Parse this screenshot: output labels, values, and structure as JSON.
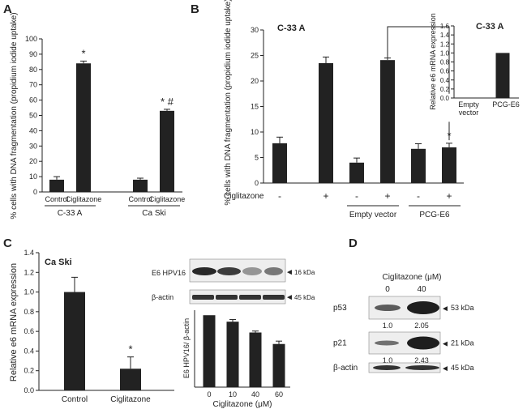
{
  "panels": {
    "A": {
      "letter": "A"
    },
    "B": {
      "letter": "B"
    },
    "C": {
      "letter": "C"
    },
    "D": {
      "letter": "D"
    }
  },
  "chart_data": [
    {
      "id": "A",
      "type": "bar",
      "ylabel": "% cells with DNA fragmentation (propidium iodide uptake)",
      "ylim": [
        0,
        100
      ],
      "yticks": [
        0,
        10,
        20,
        30,
        40,
        50,
        60,
        70,
        80,
        90,
        100
      ],
      "categories": [
        "Control",
        "Ciglitazone",
        "Control",
        "Ciglitazone"
      ],
      "groups": [
        "C-33 A",
        "Ca Ski"
      ],
      "values": [
        8,
        84,
        8,
        53
      ],
      "errors": [
        2,
        1.5,
        1,
        1
      ],
      "annotations": [
        "",
        "*",
        "",
        "* #"
      ]
    },
    {
      "id": "B",
      "type": "bar",
      "title": "C-33 A",
      "ylabel": "% cells with DNA fragmentation (propidium iodide uptake)",
      "ylim": [
        0,
        30
      ],
      "yticks": [
        0,
        5,
        10,
        15,
        20,
        25,
        30
      ],
      "xrow_label": "Ciglitazone",
      "categories": [
        "-",
        "+",
        "-",
        "+",
        "-",
        "+"
      ],
      "groups": [
        "Empty vector",
        "PCG-E6"
      ],
      "values": [
        7.8,
        23.5,
        4,
        24.1,
        6.7,
        7
      ],
      "errors": [
        1.2,
        1.2,
        0.9,
        0.4,
        1,
        0.8
      ],
      "annotations": [
        "",
        "",
        "",
        "",
        "",
        "*"
      ]
    },
    {
      "id": "B-inset",
      "type": "bar",
      "title": "C-33 A",
      "ylabel": "Relative e6 mRNA expression",
      "ylim": [
        0,
        1.6
      ],
      "yticks": [
        "0.0",
        "0.2",
        "0.4",
        "0.6",
        "0.8",
        "1.0",
        "1.2",
        "1.4",
        "1.6"
      ],
      "categories": [
        "Empty vector",
        "PCG-E6"
      ],
      "values": [
        0,
        1.0
      ]
    },
    {
      "id": "C-left",
      "type": "bar",
      "title": "Ca Ski",
      "ylabel": "Relative e6 mRNA expression",
      "ylim": [
        0,
        1.4
      ],
      "yticks": [
        "0.0",
        "0.2",
        "0.4",
        "0.6",
        "0.8",
        "1.0",
        "1.2",
        "1.4"
      ],
      "categories": [
        "Control",
        "Ciglitazone"
      ],
      "values": [
        1.0,
        0.22
      ],
      "errors": [
        0.15,
        0.12
      ],
      "annotations": [
        "",
        "*"
      ]
    },
    {
      "id": "C-right",
      "type": "bar",
      "ylabel": "E6 HPV16/ β-actin",
      "xlabel": "Ciglitazone (μM)",
      "categories": [
        "0",
        "10",
        "40",
        "60"
      ],
      "values": [
        1.0,
        0.91,
        0.76,
        0.6
      ],
      "errors": [
        0,
        0.03,
        0.02,
        0.04
      ]
    }
  ],
  "blots": {
    "C": {
      "rows": [
        {
          "label": "E6 HPV16",
          "marker": "16 kDa"
        },
        {
          "label": "β-actin",
          "marker": "45 kDa"
        }
      ]
    },
    "D": {
      "title": "Ciglitazone (μM)",
      "doses": [
        "0",
        "40"
      ],
      "rows": [
        {
          "label": "p53",
          "marker": "53 kDa",
          "quant": [
            "1.0",
            "2.05"
          ]
        },
        {
          "label": "p21",
          "marker": "21 kDa",
          "quant": [
            "1.0",
            "2.43"
          ]
        },
        {
          "label": "β-actin",
          "marker": "45 kDa",
          "quant": []
        }
      ]
    }
  }
}
